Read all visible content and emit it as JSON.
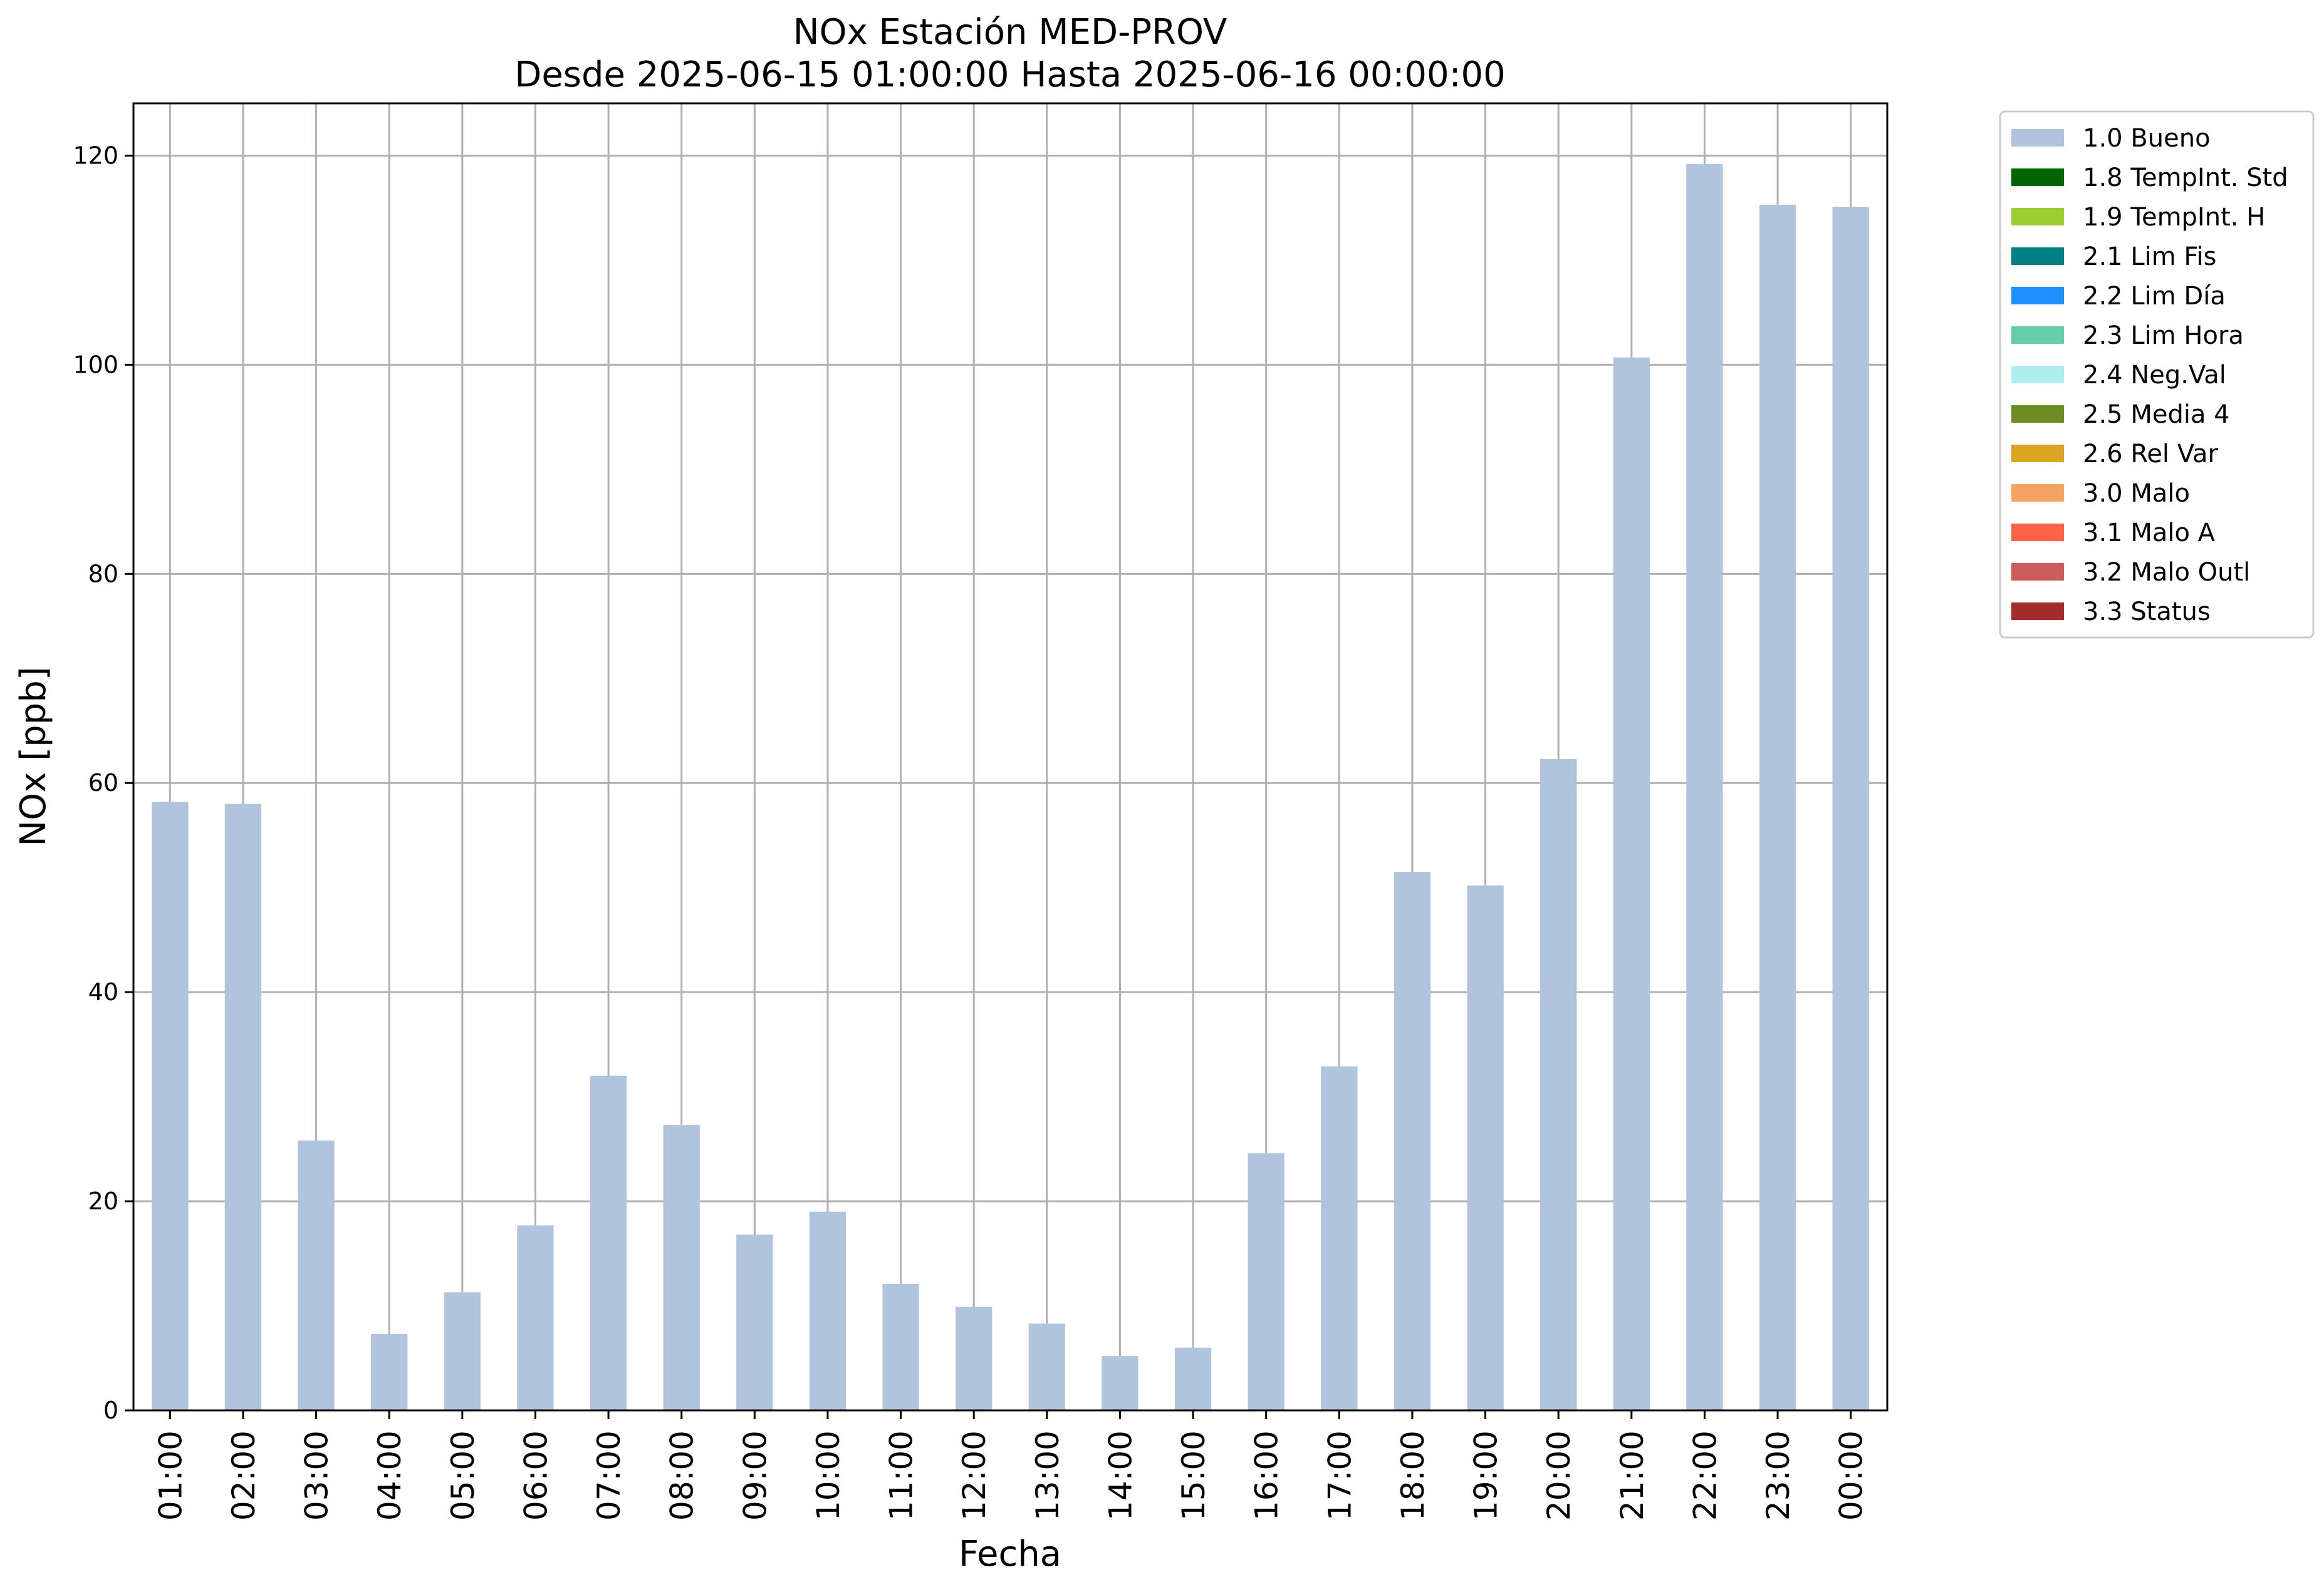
{
  "chart_data": {
    "type": "bar",
    "title": "NOx Estación MED-PROV",
    "subtitle": "Desde 2025-06-15 01:00:00 Hasta 2025-06-16 00:00:00",
    "xlabel": "Fecha",
    "ylabel": "NOx [ppb]",
    "ylim": [
      0,
      125
    ],
    "yticks": [
      "0",
      "20",
      "40",
      "60",
      "80",
      "100",
      "120"
    ],
    "grid": true,
    "legend_position": "outside-top-right",
    "categories": [
      "01:00",
      "02:00",
      "03:00",
      "04:00",
      "05:00",
      "06:00",
      "07:00",
      "08:00",
      "09:00",
      "10:00",
      "11:00",
      "12:00",
      "13:00",
      "14:00",
      "15:00",
      "16:00",
      "17:00",
      "18:00",
      "19:00",
      "20:00",
      "21:00",
      "22:00",
      "23:00",
      "00:00"
    ],
    "series": [
      {
        "name": "1.0 Bueno",
        "color": "#b0c4de",
        "values": [
          58.2,
          58.0,
          25.8,
          7.3,
          11.3,
          17.7,
          32.0,
          27.3,
          16.8,
          19.0,
          12.1,
          9.9,
          8.3,
          5.2,
          6.0,
          24.6,
          32.9,
          51.5,
          50.2,
          62.3,
          100.7,
          119.2,
          115.3,
          115.1
        ]
      }
    ],
    "legend": [
      {
        "label": "1.0 Bueno",
        "color": "#b0c4de"
      },
      {
        "label": "1.8 TempInt. Std",
        "color": "#006400"
      },
      {
        "label": "1.9 TempInt. H",
        "color": "#9acd32"
      },
      {
        "label": "2.1 Lim Fis",
        "color": "#008080"
      },
      {
        "label": "2.2 Lim Día",
        "color": "#1e90ff"
      },
      {
        "label": "2.3 Lim Hora",
        "color": "#66cdaa"
      },
      {
        "label": "2.4 Neg.Val",
        "color": "#afeeee"
      },
      {
        "label": "2.5 Media 4",
        "color": "#6b8e23"
      },
      {
        "label": "2.6 Rel Var",
        "color": "#daa520"
      },
      {
        "label": "3.0 Malo",
        "color": "#f4a460"
      },
      {
        "label": "3.1 Malo A",
        "color": "#ff6347"
      },
      {
        "label": "3.2 Malo Outl",
        "color": "#cd5c5c"
      },
      {
        "label": "3.3 Status",
        "color": "#a52a2a"
      }
    ]
  }
}
